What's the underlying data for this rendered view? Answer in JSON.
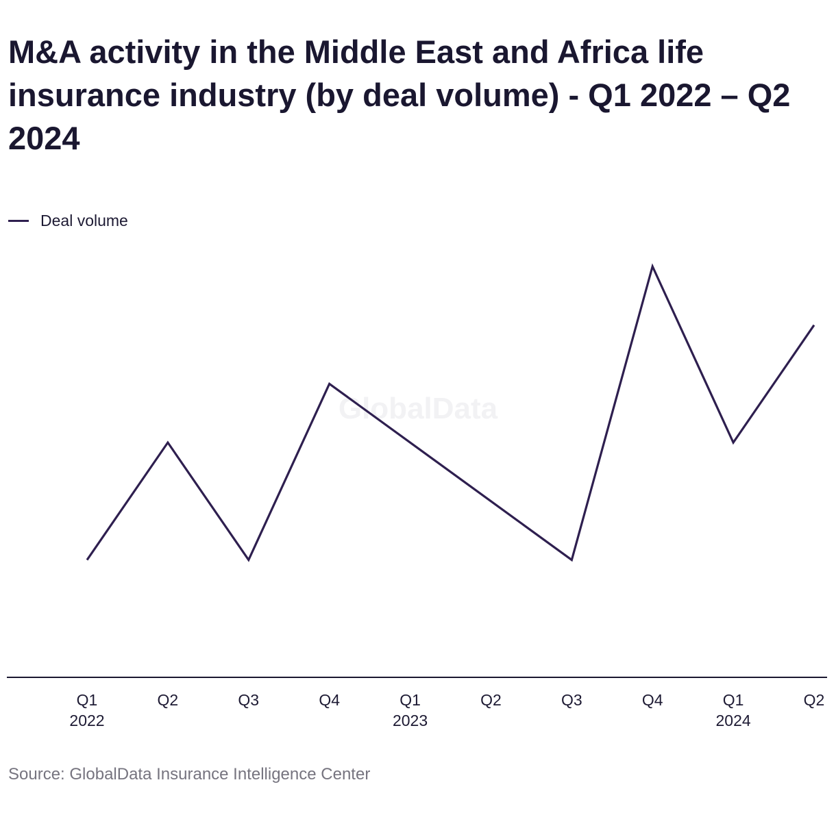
{
  "title": "M&A activity in the Middle East and Africa life insurance industry (by deal volume) - Q1 2022 – Q2 2024",
  "legend": {
    "series_label": "Deal volume"
  },
  "watermark": "GlobalData",
  "source": "Source: GlobalData Insurance Intelligence Center",
  "colors": {
    "line": "#2e1f4f",
    "axis": "#1a1730",
    "text": "#1d1a33",
    "source": "#76747f",
    "watermark": "#f2f2f4"
  },
  "chart_data": {
    "type": "line",
    "title": "M&A activity in the Middle East and Africa life insurance industry (by deal volume) - Q1 2022 – Q2 2024",
    "xlabel": "",
    "ylabel": "",
    "x_ticks": [
      {
        "quarter": "Q1",
        "year": "2022"
      },
      {
        "quarter": "Q2",
        "year": ""
      },
      {
        "quarter": "Q3",
        "year": ""
      },
      {
        "quarter": "Q4",
        "year": ""
      },
      {
        "quarter": "Q1",
        "year": "2023"
      },
      {
        "quarter": "Q2",
        "year": ""
      },
      {
        "quarter": "Q3",
        "year": ""
      },
      {
        "quarter": "Q4",
        "year": ""
      },
      {
        "quarter": "Q1",
        "year": "2024"
      },
      {
        "quarter": "Q2",
        "year": ""
      }
    ],
    "categories": [
      "Q1 2022",
      "Q2 2022",
      "Q3 2022",
      "Q4 2022",
      "Q1 2023",
      "Q2 2023",
      "Q3 2023",
      "Q4 2023",
      "Q1 2024",
      "Q2 2024"
    ],
    "series": [
      {
        "name": "Deal volume",
        "values": [
          2,
          4,
          2,
          5,
          null,
          null,
          2,
          7,
          4,
          6
        ]
      }
    ],
    "connect_gaps": true,
    "ylim": [
      0,
      9
    ],
    "y_axis_labels": false,
    "grid": false,
    "legend_position": "top-left"
  }
}
